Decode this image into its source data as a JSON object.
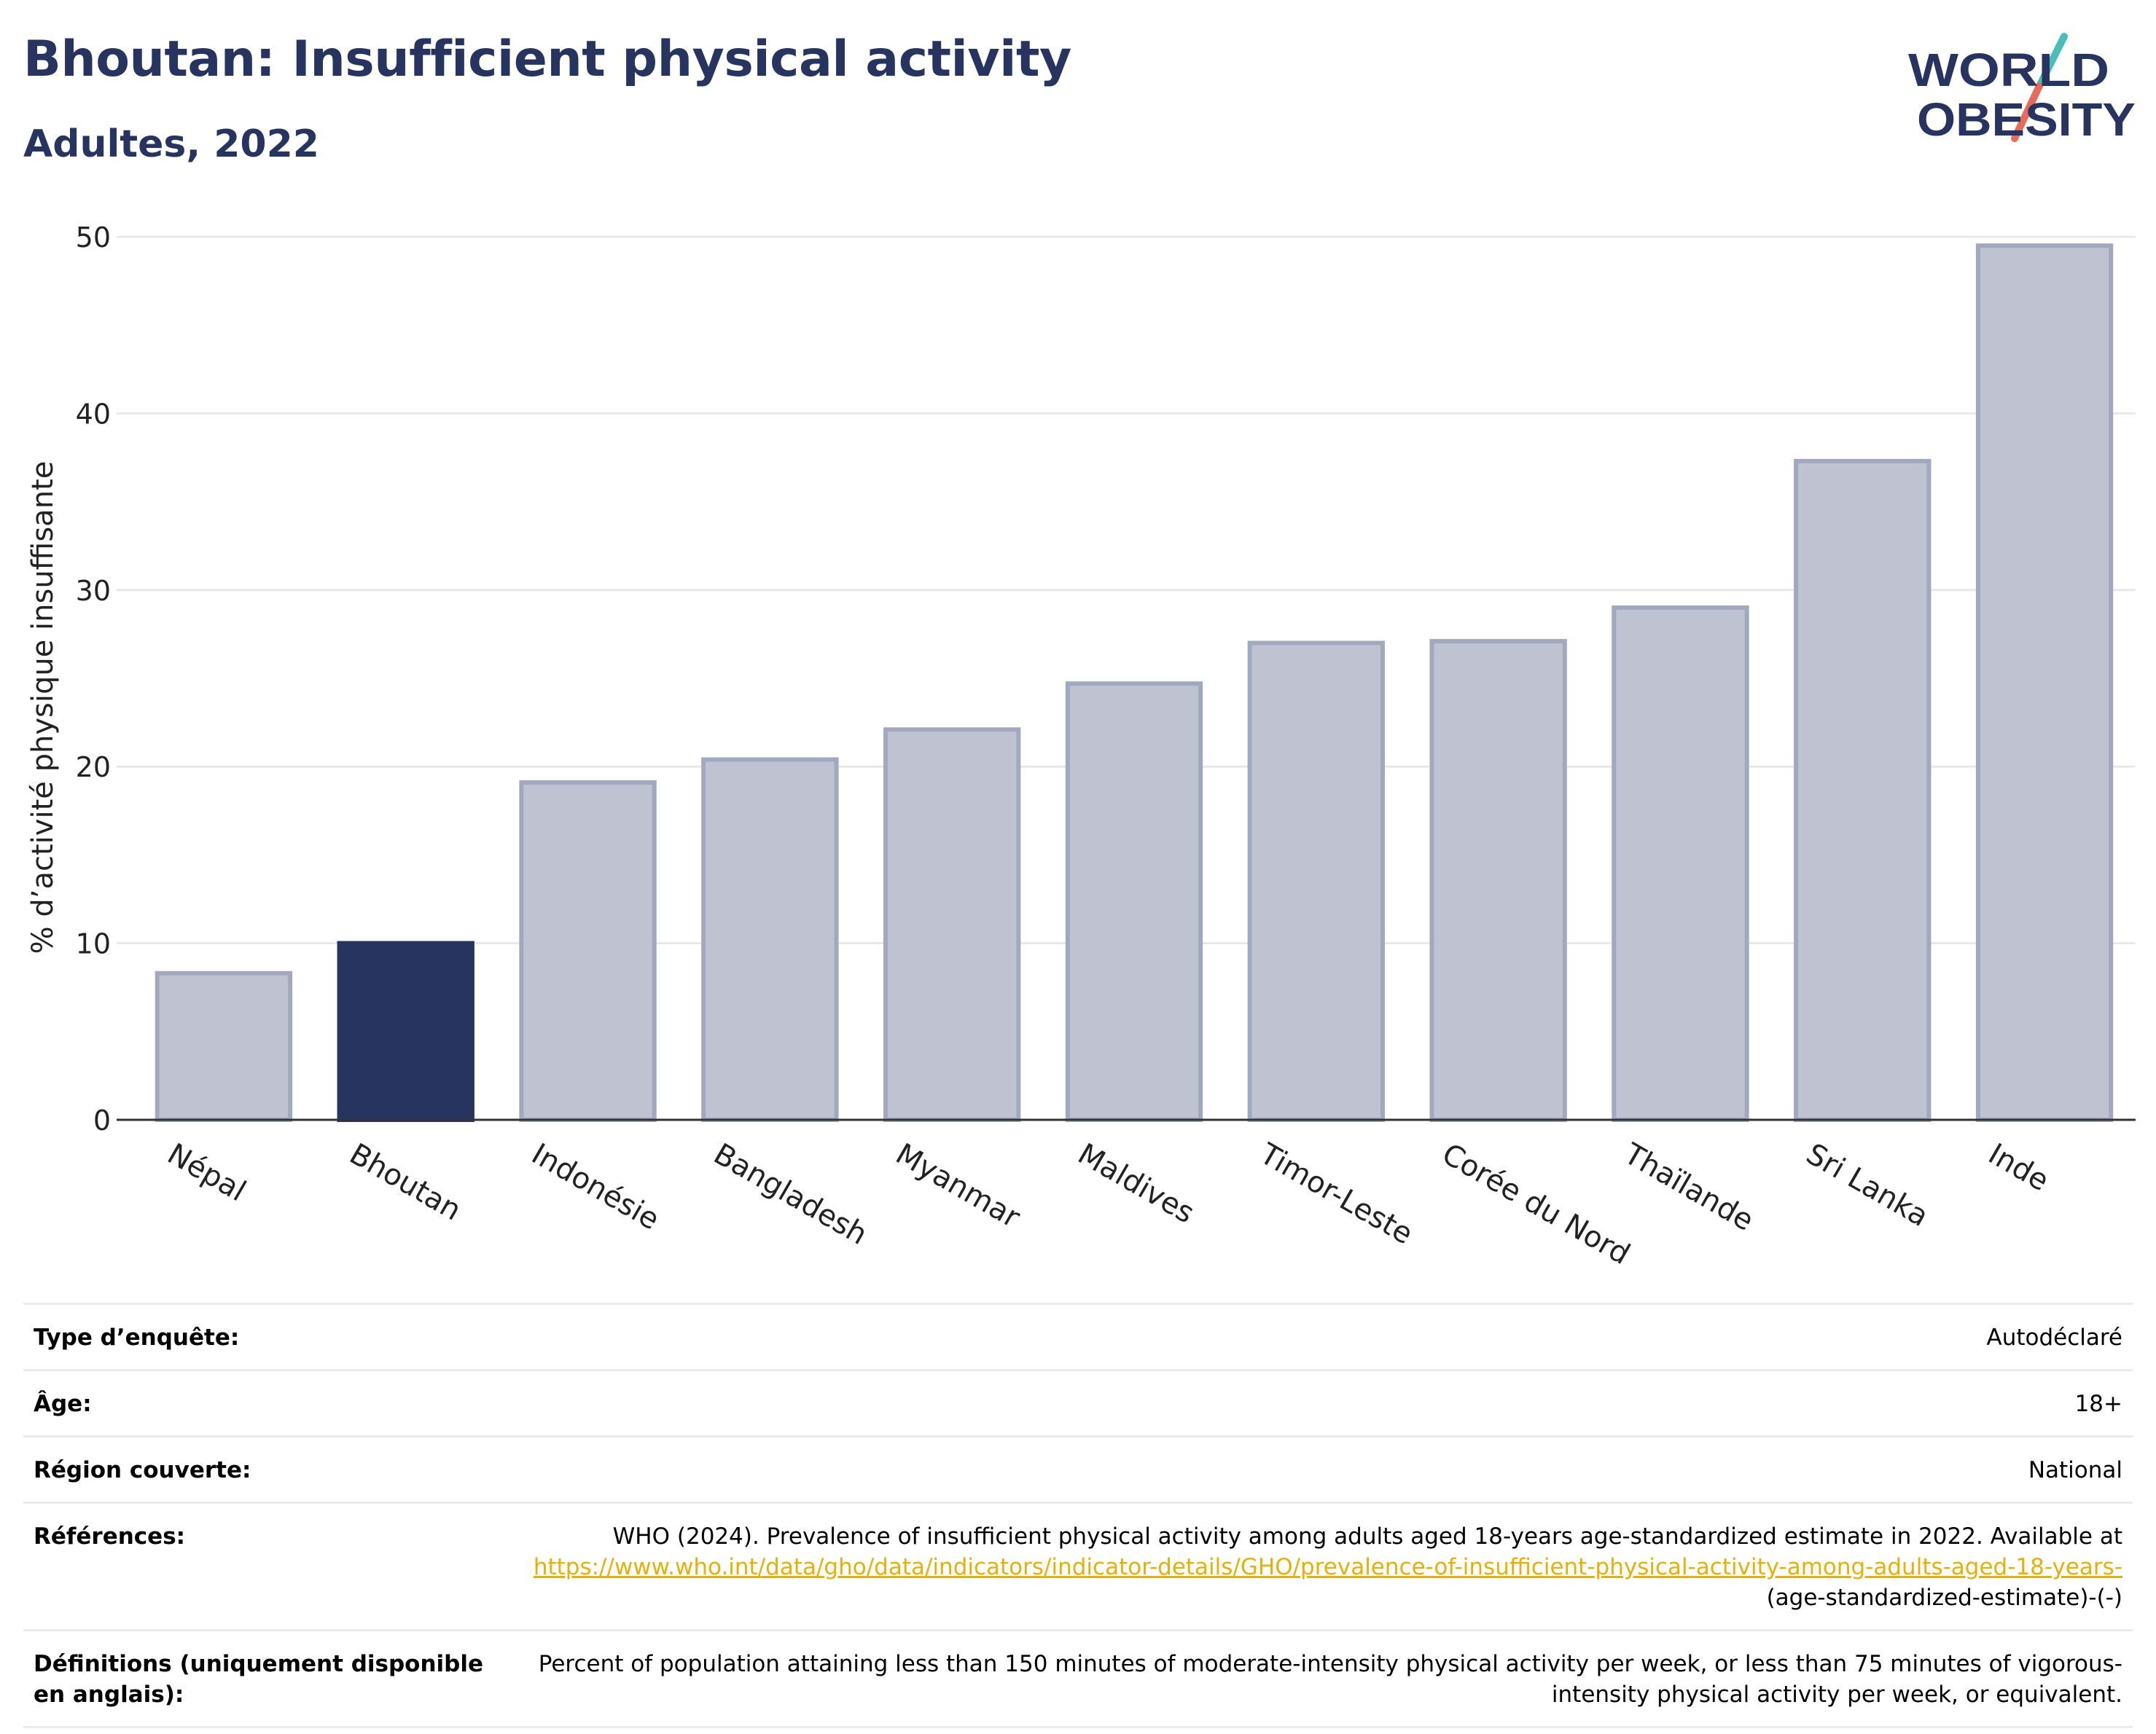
{
  "header": {
    "title": "Bhoutan: Insufficient physical activity",
    "subtitle": "Adultes, 2022"
  },
  "logo": {
    "line1": "WORLD",
    "line2": "OBESITY",
    "icon": "slash-logo-icon",
    "colors": [
      "#283460",
      "#4bbdb8",
      "#e56c5b"
    ]
  },
  "chart_data": {
    "type": "bar",
    "title": "",
    "xlabel": "",
    "ylabel": "% d’activité physique insuffisante",
    "ylim": [
      0,
      50
    ],
    "yticks": [
      0,
      10,
      20,
      30,
      40,
      50
    ],
    "grid": true,
    "categories": [
      "Népal",
      "Bhoutan",
      "Indonésie",
      "Bangladesh",
      "Myanmar",
      "Maldives",
      "Timor-Leste",
      "Corée du Nord",
      "Thaïlande",
      "Sri Lanka",
      "Inde"
    ],
    "values": [
      8.3,
      10.0,
      19.1,
      20.4,
      22.1,
      24.7,
      27.0,
      27.1,
      29.0,
      37.3,
      49.5
    ],
    "highlight": "Bhoutan",
    "colors": {
      "bar": "#bfc3d1",
      "bar_border": "#a2a8bd",
      "highlight": "#283460"
    }
  },
  "info": [
    {
      "label": "Type d’enquête:",
      "value": "Autodéclaré"
    },
    {
      "label": "Âge:",
      "value": "18+"
    },
    {
      "label": "Région couverte:",
      "value": "National"
    },
    {
      "label": "Références:",
      "value": "WHO (2024). Prevalence of insufficient physical activity among adults aged 18-years age-standardized estimate in 2022. Available at",
      "link": "https://www.who.int/data/gho/data/indicators/indicator-details/GHO/prevalence-of-insufficient-physical-activity-among-adults-aged-18-years-",
      "suffix": "(age-standardized-estimate)-(-)"
    },
    {
      "label": "Définitions (uniquement disponible en anglais):",
      "value": "Percent of population attaining less than 150 minutes of moderate-intensity physical activity per week, or less than 75 minutes of vigorous-intensity physical activity per week, or equivalent."
    }
  ]
}
